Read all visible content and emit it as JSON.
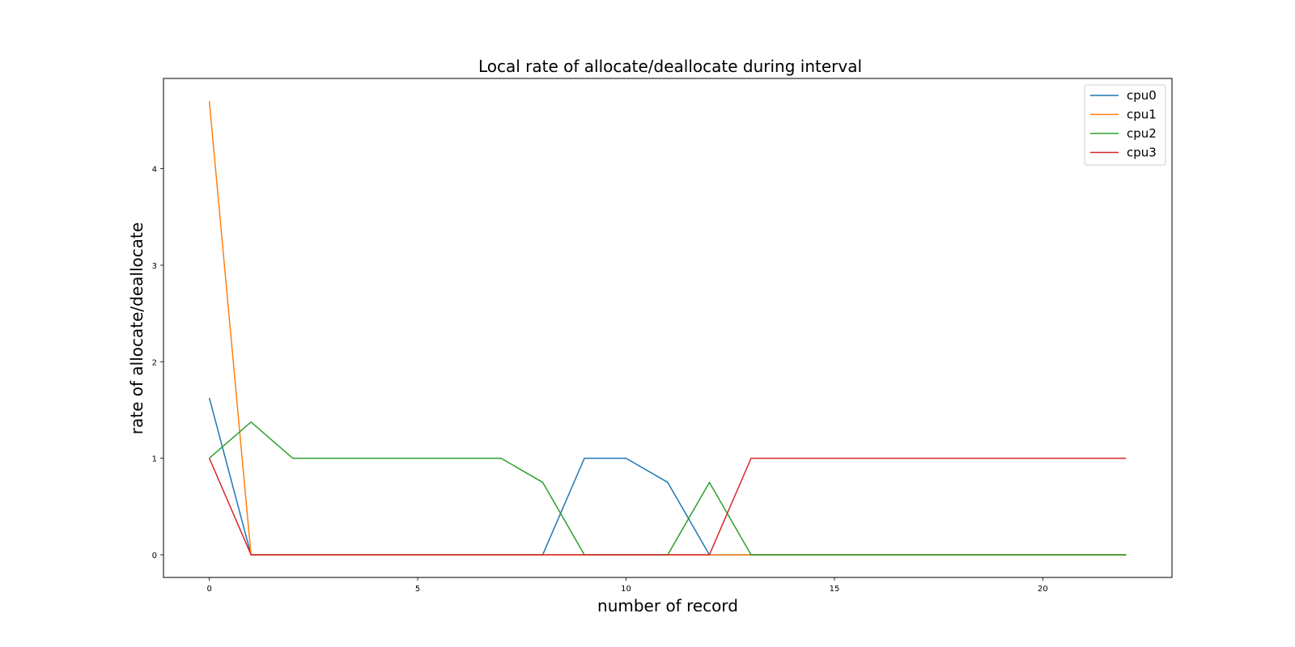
{
  "chart_data": {
    "type": "line",
    "title": "Local rate of allocate/deallocate during interval",
    "xlabel": "number of record",
    "ylabel": "rate of allocate/deallocate",
    "xlim": [
      -1.1,
      23.1
    ],
    "ylim": [
      -0.235,
      4.935
    ],
    "xticks": [
      0,
      5,
      10,
      15,
      20
    ],
    "yticks": [
      0,
      1,
      2,
      3,
      4
    ],
    "x": [
      0,
      1,
      2,
      3,
      4,
      5,
      6,
      7,
      8,
      9,
      10,
      11,
      12,
      13,
      14,
      15,
      16,
      17,
      18,
      19,
      20,
      21,
      22
    ],
    "grid": false,
    "legend_position": "upper right",
    "series": [
      {
        "name": "cpu0",
        "color": "#1f77b4",
        "values": [
          1.625,
          0,
          0,
          0,
          0,
          0,
          0,
          0,
          0,
          1,
          1,
          0.75,
          0,
          0,
          0,
          0,
          0,
          0,
          0,
          0,
          0,
          0,
          0
        ]
      },
      {
        "name": "cpu1",
        "color": "#ff7f0e",
        "values": [
          4.7,
          0,
          0,
          0,
          0,
          0,
          0,
          0,
          0,
          0,
          0,
          0,
          0,
          0,
          0,
          0,
          0,
          0,
          0,
          0,
          0,
          0,
          0
        ]
      },
      {
        "name": "cpu2",
        "color": "#2ca02c",
        "values": [
          1,
          1.375,
          1,
          1,
          1,
          1,
          1,
          1,
          0.75,
          0,
          0,
          0,
          0.75,
          0,
          0,
          0,
          0,
          0,
          0,
          0,
          0,
          0,
          0
        ]
      },
      {
        "name": "cpu3",
        "color": "#d62728",
        "values": [
          1,
          0,
          0,
          0,
          0,
          0,
          0,
          0,
          0,
          0,
          0,
          0,
          0,
          1,
          1,
          1,
          1,
          1,
          1,
          1,
          1,
          1,
          1
        ]
      }
    ]
  }
}
